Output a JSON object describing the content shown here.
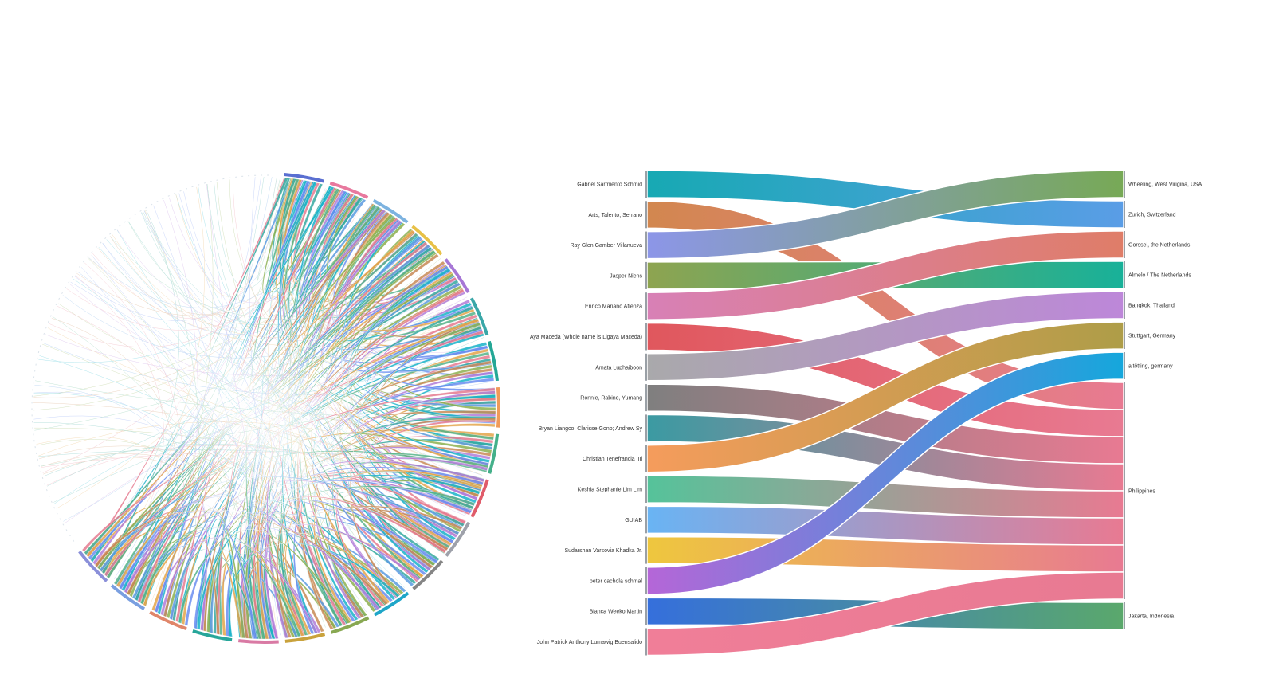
{
  "chord": {
    "segments": [
      {
        "color": "#5a6fd1"
      },
      {
        "color": "#e8799e"
      },
      {
        "color": "#7db3e0"
      },
      {
        "color": "#e8c147"
      },
      {
        "color": "#a777d6"
      },
      {
        "color": "#3aa7a8"
      },
      {
        "color": "#24a796"
      },
      {
        "color": "#f09a59"
      },
      {
        "color": "#44b08a"
      },
      {
        "color": "#e05c6a"
      },
      {
        "color": "#9ea1aa"
      },
      {
        "color": "#858585"
      },
      {
        "color": "#1fa6c8"
      },
      {
        "color": "#88a852"
      },
      {
        "color": "#c9a23c"
      },
      {
        "color": "#d97aa4"
      },
      {
        "color": "#27a69a"
      },
      {
        "color": "#e0866a"
      },
      {
        "color": "#7a9fe0"
      },
      {
        "color": "#8a8fd9"
      }
    ],
    "ribbon_palette": [
      "#e57a8f",
      "#36a9a0",
      "#5b9be0",
      "#8cb050",
      "#c88a55",
      "#b27cd8",
      "#19b3c9",
      "#6a8df0",
      "#e3a54a",
      "#56b38a"
    ]
  },
  "sankey": {
    "sources": [
      {
        "label": "Gabriel Sarmiento Schmid",
        "color": "#17a9b3"
      },
      {
        "label": "Arts, Talento, Serrano",
        "color": "#d2874f"
      },
      {
        "label": "Ray Glen Gamber Villanueva",
        "color": "#8c96e8"
      },
      {
        "label": "Jasper Niens",
        "color": "#8ea450"
      },
      {
        "label": "Enrico Mariano Atienza",
        "color": "#d880b6"
      },
      {
        "label": "Aya Maceda (Whole name is Ligaya Maceda)",
        "color": "#e0575d"
      },
      {
        "label": "Amata Luphaiboon",
        "color": "#a9a9ab"
      },
      {
        "label": "Ronnie, Rabino, Yumang",
        "color": "#7f7f7f"
      },
      {
        "label": "Bryan Liangco; Clarisse Gono; Andrew Sy",
        "color": "#3b9aa2"
      },
      {
        "label": "Christian Tenefrancia IIIi",
        "color": "#f59c5c"
      },
      {
        "label": "Keshia Stephanie Lim Lim",
        "color": "#55c39a"
      },
      {
        "label": "GUIAB",
        "color": "#69b4f4"
      },
      {
        "label": "Sudarshan Varsovia Khadka Jr.",
        "color": "#eec73e"
      },
      {
        "label": "peter cacholа schmal",
        "color": "#b566d8"
      },
      {
        "label": "Bianca Weeko Martin",
        "color": "#356fdc"
      },
      {
        "label": "John Patrick Anthony Lumawig Buensalido",
        "color": "#f07e98"
      }
    ],
    "targets": [
      {
        "label": "Wheeling, West Virigina, USA",
        "color": "#77a956"
      },
      {
        "label": "Zurich, Switzerland",
        "color": "#5a9de6"
      },
      {
        "label": "Gorssel, the Netherlands",
        "color": "#df7d68"
      },
      {
        "label": "Almelo / The Netherlands",
        "color": "#18b199"
      },
      {
        "label": "Bangkok, Thailand",
        "color": "#bd87d9"
      },
      {
        "label": "Stuttgart, Germany",
        "color": "#ae9d48"
      },
      {
        "label": "altötting, germany",
        "color": "#15a7dc"
      },
      {
        "label": "Philippines",
        "color": "#e87a92"
      },
      {
        "label": "Jakarta, Indonesia",
        "color": "#5aa86c"
      }
    ],
    "links": [
      {
        "source": 0,
        "target": 1
      },
      {
        "source": 1,
        "target": 7
      },
      {
        "source": 2,
        "target": 0
      },
      {
        "source": 3,
        "target": 3
      },
      {
        "source": 4,
        "target": 2
      },
      {
        "source": 5,
        "target": 7
      },
      {
        "source": 6,
        "target": 4
      },
      {
        "source": 7,
        "target": 7
      },
      {
        "source": 8,
        "target": 7
      },
      {
        "source": 9,
        "target": 5
      },
      {
        "source": 10,
        "target": 7
      },
      {
        "source": 11,
        "target": 7
      },
      {
        "source": 12,
        "target": 7
      },
      {
        "source": 13,
        "target": 6
      },
      {
        "source": 14,
        "target": 8
      },
      {
        "source": 15,
        "target": 7
      }
    ]
  }
}
